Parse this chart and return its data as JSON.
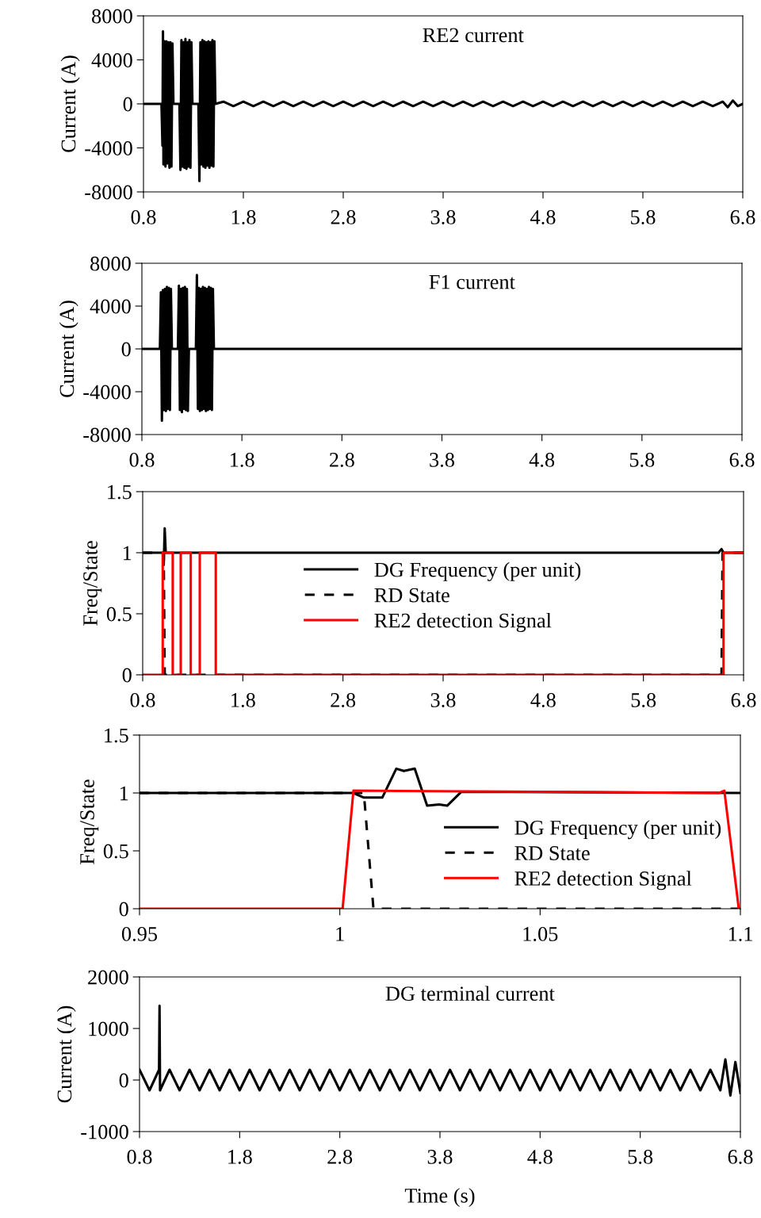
{
  "chart_data": [
    {
      "type": "line",
      "ylabel": "Current (A)",
      "annotations": [
        "RE2 current"
      ],
      "xlim": [
        0.8,
        6.8
      ],
      "ylim": [
        -8000,
        8000
      ],
      "xticks": [
        0.8,
        1.8,
        2.8,
        3.8,
        4.8,
        5.8,
        6.8
      ],
      "yticks": [
        -8000,
        -4000,
        0,
        4000,
        8000
      ],
      "grid": false,
      "legend": false,
      "series": [
        {
          "color": "#000000",
          "x": [
            0.8,
            0.98,
            0.99,
            0.995,
            1.0,
            1.01,
            1.02,
            1.03,
            1.04,
            1.05,
            1.06,
            1.07,
            1.08,
            1.09,
            1.1,
            1.16,
            1.17,
            1.18,
            1.19,
            1.2,
            1.21,
            1.22,
            1.23,
            1.24,
            1.25,
            1.26,
            1.27,
            1.28,
            1.29,
            1.35,
            1.36,
            1.37,
            1.38,
            1.39,
            1.4,
            1.41,
            1.42,
            1.43,
            1.44,
            1.45,
            1.46,
            1.47,
            1.48,
            1.49,
            1.5,
            1.51,
            1.52,
            1.6,
            1.7,
            1.8,
            1.9,
            2.0,
            2.1,
            2.2,
            2.3,
            2.4,
            2.5,
            2.6,
            2.7,
            2.8,
            2.9,
            3.0,
            3.1,
            3.2,
            3.3,
            3.4,
            3.5,
            3.6,
            3.7,
            3.8,
            3.9,
            4.0,
            4.1,
            4.2,
            4.3,
            4.4,
            4.5,
            4.6,
            4.7,
            4.8,
            4.9,
            5.0,
            5.1,
            5.2,
            5.3,
            5.4,
            5.5,
            5.6,
            5.7,
            5.8,
            5.9,
            6.0,
            6.1,
            6.2,
            6.3,
            6.4,
            6.5,
            6.6,
            6.65,
            6.7,
            6.75,
            6.8
          ],
          "values": [
            0,
            0,
            -3800,
            6600,
            -5500,
            5700,
            -5700,
            5700,
            -5400,
            5600,
            -5800,
            5600,
            -5700,
            5500,
            0,
            0,
            -6000,
            5800,
            -5700,
            5600,
            -5800,
            5900,
            -5900,
            5600,
            -5700,
            5800,
            -5800,
            5600,
            0,
            0,
            -7000,
            5600,
            -5500,
            5800,
            -5700,
            5700,
            -5800,
            5600,
            -5600,
            5700,
            -5800,
            5600,
            -5600,
            5800,
            -5700,
            5700,
            0,
            200,
            -200,
            200,
            -200,
            200,
            -200,
            200,
            -200,
            200,
            -200,
            200,
            -200,
            200,
            -200,
            200,
            -200,
            200,
            -200,
            200,
            -200,
            200,
            -200,
            200,
            -200,
            200,
            -200,
            200,
            -200,
            200,
            -200,
            200,
            -200,
            200,
            -200,
            200,
            -200,
            200,
            -200,
            200,
            -200,
            200,
            -200,
            200,
            -200,
            200,
            -200,
            200,
            -200,
            200,
            -200,
            200,
            -300,
            300,
            -200,
            0
          ]
        }
      ]
    },
    {
      "type": "line",
      "ylabel": "Current (A)",
      "annotations": [
        "F1 current"
      ],
      "xlim": [
        0.8,
        6.8
      ],
      "ylim": [
        -8000,
        8000
      ],
      "xticks": [
        0.8,
        1.8,
        2.8,
        3.8,
        4.8,
        5.8,
        6.8
      ],
      "yticks": [
        -8000,
        -4000,
        0,
        4000,
        8000
      ],
      "grid": false,
      "legend": false,
      "series": [
        {
          "color": "#000000",
          "x": [
            0.8,
            0.98,
            0.99,
            1.0,
            1.01,
            1.02,
            1.03,
            1.04,
            1.05,
            1.06,
            1.07,
            1.08,
            1.09,
            1.1,
            1.16,
            1.17,
            1.18,
            1.19,
            1.2,
            1.21,
            1.22,
            1.23,
            1.24,
            1.25,
            1.26,
            1.27,
            1.34,
            1.35,
            1.36,
            1.37,
            1.38,
            1.39,
            1.4,
            1.41,
            1.42,
            1.43,
            1.44,
            1.45,
            1.46,
            1.47,
            1.48,
            1.49,
            1.5,
            1.51,
            1.52,
            6.8
          ],
          "values": [
            0,
            0,
            5300,
            -6700,
            5500,
            -5700,
            5600,
            -5800,
            5800,
            -5600,
            5700,
            -5700,
            5600,
            0,
            0,
            5900,
            -5700,
            5600,
            -5900,
            5700,
            -5600,
            5800,
            -5700,
            5600,
            -5800,
            0,
            0,
            6900,
            -5600,
            5700,
            -5800,
            5600,
            -5700,
            5800,
            -5600,
            5700,
            -5800,
            5600,
            -5700,
            5800,
            -5600,
            5700,
            -5700,
            5600,
            0,
            0
          ]
        }
      ]
    },
    {
      "type": "line",
      "ylabel": "Freq/State",
      "xlim": [
        0.8,
        6.8
      ],
      "ylim": [
        0,
        1.5
      ],
      "xticks": [
        0.8,
        1.8,
        2.8,
        3.8,
        4.8,
        5.8,
        6.8
      ],
      "yticks": [
        0,
        0.5,
        1,
        1.5
      ],
      "grid": false,
      "legend": "center",
      "series": [
        {
          "name": "DG Frequency (per unit)",
          "color": "#000000",
          "line_style": "solid",
          "x": [
            0.8,
            1.0,
            1.01,
            1.02,
            1.03,
            6.55,
            6.58,
            6.6,
            6.8
          ],
          "values": [
            1,
            1,
            0.9,
            1.2,
            1,
            1,
            1.03,
            1,
            1
          ]
        },
        {
          "name": "RD State",
          "color": "#000000",
          "line_style": "dashed",
          "x": [
            0.8,
            1.01,
            1.02,
            6.58,
            6.59,
            6.8
          ],
          "values": [
            1,
            1,
            0,
            0,
            1,
            1
          ]
        },
        {
          "name": "RE2 detection Signal",
          "color": "#ff0000",
          "line_style": "solid",
          "x": [
            0.8,
            1.0,
            1.0,
            1.1,
            1.1,
            1.18,
            1.18,
            1.28,
            1.28,
            1.37,
            1.37,
            1.53,
            1.53,
            6.6,
            6.6,
            6.8
          ],
          "values": [
            0,
            0,
            1,
            1,
            0,
            0,
            1,
            1,
            0,
            0,
            1,
            1,
            0,
            0,
            1,
            1
          ]
        }
      ]
    },
    {
      "type": "line",
      "ylabel": "Freq/State",
      "xlim": [
        0.95,
        1.1
      ],
      "ylim": [
        0,
        1.5
      ],
      "xticks": [
        0.95,
        1,
        1.05,
        1.1
      ],
      "yticks": [
        0,
        0.5,
        1,
        1.5
      ],
      "grid": false,
      "legend": "lower right",
      "series": [
        {
          "name": "DG Frequency (per unit)",
          "color": "#000000",
          "line_style": "solid",
          "x": [
            0.95,
            1.0034,
            1.006,
            1.0106,
            1.0141,
            1.016,
            1.0187,
            1.0218,
            1.0248,
            1.0268,
            1.0303,
            1.1
          ],
          "values": [
            1,
            1,
            0.96,
            0.96,
            1.21,
            1.19,
            1.21,
            0.89,
            0.9,
            0.89,
            1.01,
            1
          ]
        },
        {
          "name": "RD State",
          "color": "#000000",
          "line_style": "dashed",
          "x": [
            0.95,
            1.006,
            1.0084,
            1.1
          ],
          "values": [
            1,
            1,
            0,
            0
          ]
        },
        {
          "name": "RE2 detection Signal",
          "color": "#ff0000",
          "line_style": "solid",
          "x": [
            0.95,
            1.0007,
            1.0034,
            1.0947,
            1.096,
            1.0996
          ],
          "values": [
            0,
            0,
            1.02,
            1,
            1.02,
            0
          ]
        }
      ]
    },
    {
      "type": "line",
      "ylabel": "Current (A)",
      "xlabel": "Time (s)",
      "annotations": [
        "DG terminal current"
      ],
      "xlim": [
        0.8,
        6.8
      ],
      "ylim": [
        -1000,
        2000
      ],
      "xticks": [
        0.8,
        1.8,
        2.8,
        3.8,
        4.8,
        5.8,
        6.8
      ],
      "yticks": [
        -1000,
        0,
        1000,
        2000
      ],
      "grid": false,
      "legend": false,
      "series": [
        {
          "color": "#000000",
          "x": [
            0.8,
            0.9,
            0.995,
            1.0,
            1.005,
            1.1,
            1.2,
            1.3,
            1.4,
            1.5,
            1.6,
            1.7,
            1.8,
            1.9,
            2.0,
            2.1,
            2.2,
            2.3,
            2.4,
            2.5,
            2.6,
            2.7,
            2.8,
            2.9,
            3.0,
            3.1,
            3.2,
            3.3,
            3.4,
            3.5,
            3.6,
            3.7,
            3.8,
            3.9,
            4.0,
            4.1,
            4.2,
            4.3,
            4.4,
            4.5,
            4.6,
            4.7,
            4.8,
            4.9,
            5.0,
            5.1,
            5.2,
            5.3,
            5.4,
            5.5,
            5.6,
            5.7,
            5.8,
            5.9,
            6.0,
            6.1,
            6.2,
            6.3,
            6.4,
            6.5,
            6.6,
            6.65,
            6.7,
            6.75,
            6.8
          ],
          "values": [
            200,
            -200,
            200,
            1440,
            -200,
            200,
            -200,
            200,
            -200,
            200,
            -200,
            200,
            -200,
            200,
            -200,
            200,
            -200,
            200,
            -200,
            200,
            -200,
            200,
            -200,
            200,
            -200,
            200,
            -200,
            200,
            -200,
            200,
            -200,
            200,
            -200,
            200,
            -200,
            200,
            -200,
            200,
            -200,
            200,
            -200,
            200,
            -200,
            200,
            -200,
            200,
            -200,
            200,
            -200,
            200,
            -200,
            200,
            -200,
            200,
            -200,
            200,
            -200,
            200,
            -200,
            200,
            -200,
            400,
            -300,
            350,
            -250
          ]
        }
      ]
    }
  ]
}
